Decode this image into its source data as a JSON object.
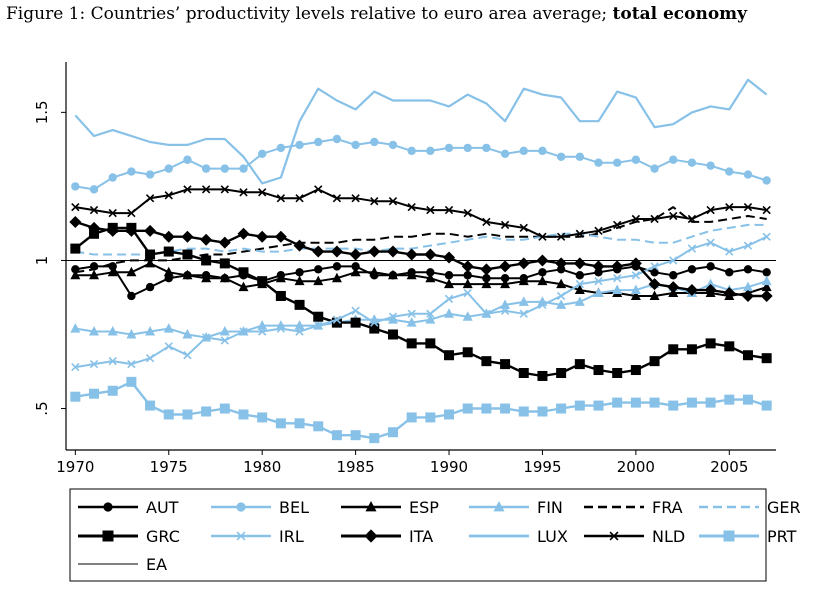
{
  "figure": {
    "title_prefix": "Figure 1: Countries’ productivity levels relative to euro area average; ",
    "title_bold": "total economy"
  },
  "chart_data": {
    "type": "line",
    "title": "Figure 1: Countries’ productivity levels relative to euro area average; total economy",
    "xlabel": "",
    "ylabel": "",
    "xlim": [
      1969.5,
      2007.5
    ],
    "ylim": [
      0.36,
      1.67
    ],
    "x_ticks": [
      1970,
      1975,
      1980,
      1985,
      1990,
      1995,
      2000,
      2005
    ],
    "y_ticks": [
      0.5,
      1,
      1.5
    ],
    "y_tick_labels": [
      ".5",
      "1",
      "1.5"
    ],
    "grid": false,
    "legend_position": "bottom",
    "reference_line": {
      "name": "EA",
      "value": 1
    },
    "x": [
      1970,
      1971,
      1972,
      1973,
      1974,
      1975,
      1976,
      1977,
      1978,
      1979,
      1980,
      1981,
      1982,
      1983,
      1984,
      1985,
      1986,
      1987,
      1988,
      1989,
      1990,
      1991,
      1992,
      1993,
      1994,
      1995,
      1996,
      1997,
      1998,
      1999,
      2000,
      2001,
      2002,
      2003,
      2004,
      2005,
      2006,
      2007
    ],
    "series": [
      {
        "name": "AUT",
        "color": "#000000",
        "line": "solid",
        "width": 2,
        "marker": "circle",
        "values": [
          0.97,
          0.98,
          0.98,
          0.88,
          0.91,
          0.94,
          0.95,
          0.95,
          0.94,
          0.95,
          0.93,
          0.95,
          0.96,
          0.97,
          0.98,
          0.98,
          0.95,
          0.95,
          0.96,
          0.96,
          0.95,
          0.95,
          0.94,
          0.94,
          0.94,
          0.96,
          0.97,
          0.95,
          0.96,
          0.97,
          0.98,
          0.96,
          0.95,
          0.97,
          0.98,
          0.96,
          0.97,
          0.96
        ]
      },
      {
        "name": "BEL",
        "color": "#87c1e8",
        "line": "solid",
        "width": 2,
        "marker": "circle",
        "values": [
          1.25,
          1.24,
          1.28,
          1.3,
          1.29,
          1.31,
          1.34,
          1.31,
          1.31,
          1.31,
          1.36,
          1.38,
          1.39,
          1.4,
          1.41,
          1.39,
          1.4,
          1.39,
          1.37,
          1.37,
          1.38,
          1.38,
          1.38,
          1.36,
          1.37,
          1.37,
          1.35,
          1.35,
          1.33,
          1.33,
          1.34,
          1.31,
          1.34,
          1.33,
          1.32,
          1.3,
          1.29,
          1.27
        ]
      },
      {
        "name": "ESP",
        "color": "#000000",
        "line": "solid",
        "width": 2,
        "marker": "triangle",
        "values": [
          0.95,
          0.95,
          0.96,
          0.96,
          0.99,
          0.96,
          0.95,
          0.94,
          0.94,
          0.91,
          0.92,
          0.94,
          0.93,
          0.93,
          0.94,
          0.96,
          0.96,
          0.95,
          0.95,
          0.94,
          0.92,
          0.92,
          0.92,
          0.92,
          0.93,
          0.93,
          0.92,
          0.9,
          0.89,
          0.89,
          0.88,
          0.88,
          0.89,
          0.89,
          0.89,
          0.88,
          0.89,
          0.91
        ]
      },
      {
        "name": "FIN",
        "color": "#87c1e8",
        "line": "solid",
        "width": 2,
        "marker": "triangle",
        "values": [
          0.77,
          0.76,
          0.76,
          0.75,
          0.76,
          0.77,
          0.75,
          0.74,
          0.76,
          0.76,
          0.78,
          0.78,
          0.78,
          0.78,
          0.79,
          0.8,
          0.8,
          0.8,
          0.79,
          0.8,
          0.82,
          0.81,
          0.82,
          0.85,
          0.86,
          0.86,
          0.85,
          0.86,
          0.89,
          0.9,
          0.9,
          0.92,
          0.91,
          0.89,
          0.92,
          0.9,
          0.91,
          0.93
        ]
      },
      {
        "name": "FRA",
        "color": "#000000",
        "line": "dash",
        "width": 2,
        "marker": "none",
        "values": [
          0.96,
          0.97,
          0.99,
          1.0,
          1.0,
          1.0,
          1.01,
          1.02,
          1.02,
          1.03,
          1.04,
          1.05,
          1.06,
          1.06,
          1.06,
          1.07,
          1.07,
          1.08,
          1.08,
          1.09,
          1.09,
          1.08,
          1.09,
          1.08,
          1.08,
          1.08,
          1.08,
          1.08,
          1.09,
          1.11,
          1.13,
          1.14,
          1.18,
          1.13,
          1.13,
          1.14,
          1.15,
          1.14
        ]
      },
      {
        "name": "GER",
        "color": "#87c1e8",
        "line": "dash",
        "width": 2,
        "marker": "none",
        "values": [
          1.03,
          1.02,
          1.02,
          1.02,
          1.02,
          1.03,
          1.04,
          1.04,
          1.03,
          1.04,
          1.03,
          1.03,
          1.04,
          1.04,
          1.04,
          1.04,
          1.03,
          1.04,
          1.04,
          1.05,
          1.06,
          1.07,
          1.08,
          1.07,
          1.07,
          1.08,
          1.09,
          1.09,
          1.08,
          1.07,
          1.07,
          1.06,
          1.06,
          1.08,
          1.1,
          1.11,
          1.12,
          1.12
        ]
      },
      {
        "name": "GRC",
        "color": "#000000",
        "line": "solid",
        "width": 2.4,
        "marker": "square",
        "values": [
          1.04,
          1.09,
          1.11,
          1.11,
          1.02,
          1.03,
          1.02,
          1.0,
          0.99,
          0.96,
          0.93,
          0.88,
          0.85,
          0.81,
          0.79,
          0.79,
          0.77,
          0.75,
          0.72,
          0.72,
          0.68,
          0.69,
          0.66,
          0.65,
          0.62,
          0.61,
          0.62,
          0.65,
          0.63,
          0.62,
          0.63,
          0.66,
          0.7,
          0.7,
          0.72,
          0.71,
          0.68,
          0.67
        ]
      },
      {
        "name": "IRL",
        "color": "#87c1e8",
        "line": "solid",
        "width": 2,
        "marker": "x",
        "values": [
          0.64,
          0.65,
          0.66,
          0.65,
          0.67,
          0.71,
          0.68,
          0.74,
          0.73,
          0.76,
          0.76,
          0.77,
          0.76,
          0.78,
          0.8,
          0.83,
          0.79,
          0.81,
          0.82,
          0.82,
          0.87,
          0.89,
          0.82,
          0.83,
          0.82,
          0.85,
          0.88,
          0.92,
          0.93,
          0.94,
          0.95,
          0.98,
          1.0,
          1.04,
          1.06,
          1.03,
          1.05,
          1.08
        ]
      },
      {
        "name": "ITA",
        "color": "#000000",
        "line": "solid",
        "width": 2.4,
        "marker": "diamond",
        "values": [
          1.13,
          1.11,
          1.1,
          1.1,
          1.1,
          1.08,
          1.08,
          1.07,
          1.06,
          1.09,
          1.08,
          1.08,
          1.05,
          1.03,
          1.03,
          1.02,
          1.03,
          1.03,
          1.02,
          1.02,
          1.01,
          0.98,
          0.97,
          0.98,
          0.99,
          1.0,
          0.99,
          0.99,
          0.98,
          0.98,
          0.99,
          0.92,
          0.91,
          0.9,
          0.9,
          0.89,
          0.88,
          0.88
        ]
      },
      {
        "name": "LUX",
        "color": "#87c1e8",
        "line": "solid",
        "width": 2.2,
        "marker": "none",
        "values": [
          1.49,
          1.42,
          1.44,
          1.42,
          1.4,
          1.39,
          1.39,
          1.41,
          1.41,
          1.35,
          1.26,
          1.28,
          1.47,
          1.58,
          1.54,
          1.51,
          1.57,
          1.54,
          1.54,
          1.54,
          1.52,
          1.56,
          1.53,
          1.47,
          1.58,
          1.56,
          1.55,
          1.47,
          1.47,
          1.57,
          1.55,
          1.45,
          1.46,
          1.5,
          1.52,
          1.51,
          1.61,
          1.56
        ]
      },
      {
        "name": "NLD",
        "color": "#000000",
        "line": "solid",
        "width": 2,
        "marker": "x",
        "values": [
          1.18,
          1.17,
          1.16,
          1.16,
          1.21,
          1.22,
          1.24,
          1.24,
          1.24,
          1.23,
          1.23,
          1.21,
          1.21,
          1.24,
          1.21,
          1.21,
          1.2,
          1.2,
          1.18,
          1.17,
          1.17,
          1.16,
          1.13,
          1.12,
          1.11,
          1.08,
          1.08,
          1.09,
          1.1,
          1.12,
          1.14,
          1.14,
          1.15,
          1.14,
          1.17,
          1.18,
          1.18,
          1.17
        ]
      },
      {
        "name": "PRT",
        "color": "#87c1e8",
        "line": "solid",
        "width": 2.4,
        "marker": "square",
        "values": [
          0.54,
          0.55,
          0.56,
          0.59,
          0.51,
          0.48,
          0.48,
          0.49,
          0.5,
          0.48,
          0.47,
          0.45,
          0.45,
          0.44,
          0.41,
          0.41,
          0.4,
          0.42,
          0.47,
          0.47,
          0.48,
          0.5,
          0.5,
          0.5,
          0.49,
          0.49,
          0.5,
          0.51,
          0.51,
          0.52,
          0.52,
          0.52,
          0.51,
          0.52,
          0.52,
          0.53,
          0.53,
          0.51
        ]
      }
    ],
    "legend": {
      "entries": [
        "AUT",
        "BEL",
        "ESP",
        "FIN",
        "FRA",
        "GER",
        "GRC",
        "IRL",
        "ITA",
        "LUX",
        "NLD",
        "PRT",
        "EA"
      ]
    }
  }
}
